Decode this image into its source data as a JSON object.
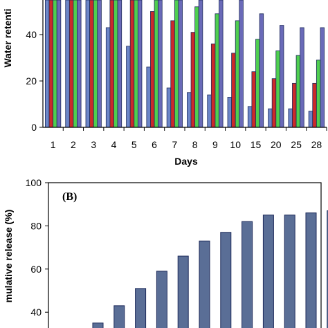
{
  "chart_data": [
    {
      "type": "bar",
      "xlabel": "Days",
      "ylabel": "Water retenti",
      "categories": [
        "1",
        "2",
        "3",
        "4",
        "5",
        "6",
        "7",
        "8",
        "9",
        "10",
        "15",
        "20",
        "25",
        "28"
      ],
      "yticks": [
        0,
        20,
        40
      ],
      "series": [
        {
          "color": "#6c86c8",
          "values": [
            60,
            60,
            55,
            43,
            35,
            26,
            17,
            15,
            14,
            13,
            9,
            8,
            8,
            7
          ]
        },
        {
          "color": "#cc2a2a",
          "values": [
            60,
            60,
            60,
            60,
            60,
            50,
            46,
            41,
            36,
            32,
            24,
            21,
            19,
            19
          ]
        },
        {
          "color": "#4fcf4f",
          "values": [
            60,
            60,
            60,
            60,
            60,
            60,
            55,
            52,
            49,
            46,
            38,
            33,
            31,
            29
          ]
        },
        {
          "color": "#6a6ab8",
          "values": [
            60,
            60,
            60,
            60,
            60,
            60,
            60,
            60,
            60,
            55,
            49,
            44,
            43,
            43
          ]
        }
      ]
    },
    {
      "type": "bar",
      "panel_label": "(B)",
      "ylabel": "mulative release (%)",
      "yticks": [
        40,
        60,
        80,
        100
      ],
      "values": [
        35,
        43,
        51,
        59,
        66,
        73,
        77,
        82,
        85,
        85,
        86,
        87
      ],
      "color": "#5a6e96"
    }
  ]
}
